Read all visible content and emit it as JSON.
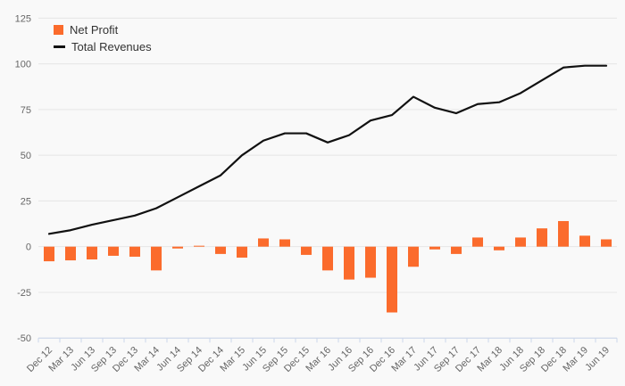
{
  "chart_data": {
    "type": "combo",
    "title": "",
    "xlabel": "",
    "ylabel": "",
    "categories": [
      "Dec 12",
      "Mar 13",
      "Jun 13",
      "Sep 13",
      "Dec 13",
      "Mar 14",
      "Jun 14",
      "Sep 14",
      "Dec 14",
      "Mar 15",
      "Jun 15",
      "Sep 15",
      "Dec 15",
      "Mar 16",
      "Jun 16",
      "Sep 16",
      "Dec 16",
      "Mar 17",
      "Jun 17",
      "Sep 17",
      "Dec 17",
      "Mar 18",
      "Jun 18",
      "Sep 18",
      "Dec 18",
      "Mar 19",
      "Jun 19"
    ],
    "series": [
      {
        "name": "Net Profit",
        "type": "bar",
        "color": "#fb6b2c",
        "values": [
          -8,
          -7.5,
          -7,
          -5,
          -5.5,
          -13,
          -1,
          0.5,
          -4,
          -6,
          4.5,
          4,
          -4.5,
          -13,
          -18,
          -17,
          -36,
          -11,
          -1.5,
          -4,
          5,
          -2,
          5,
          10,
          14,
          6,
          4
        ]
      },
      {
        "name": "Total Revenues",
        "type": "line",
        "color": "#111111",
        "values": [
          7,
          9,
          12,
          14.5,
          17,
          21,
          27,
          33,
          39,
          50,
          58,
          62,
          62,
          57,
          61,
          69,
          72,
          82,
          76,
          73,
          78,
          79,
          84,
          91,
          98,
          99,
          99
        ]
      }
    ],
    "ylim": [
      -50,
      125
    ],
    "yticks": [
      125,
      100,
      75,
      50,
      25,
      0,
      -25,
      -50
    ],
    "grid": true,
    "legend_position": "top-left",
    "colors": {
      "background": "#f9f9f9",
      "gridline": "#e6e6e6",
      "axis_line": "#ccd6eb",
      "axis_label": "#666666",
      "legend_text": "#333333",
      "bar": "#fb6b2c",
      "line": "#111111"
    }
  }
}
